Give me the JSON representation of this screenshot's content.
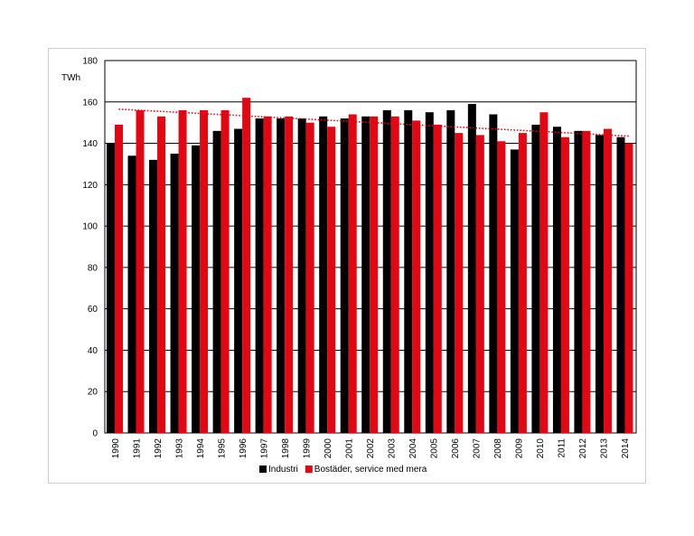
{
  "chart_data": {
    "type": "bar",
    "unit_label": "TWh",
    "categories": [
      "1990",
      "1991",
      "1992",
      "1993",
      "1994",
      "1995",
      "1996",
      "1997",
      "1998",
      "1999",
      "2000",
      "2001",
      "2002",
      "2003",
      "2004",
      "2005",
      "2006",
      "2007",
      "2008",
      "2009",
      "2010",
      "2011",
      "2012",
      "2013",
      "2014"
    ],
    "series": [
      {
        "name": "Industri",
        "color": "#000000",
        "values": [
          140,
          134,
          132,
          135,
          139,
          146,
          147,
          152,
          152,
          152,
          153,
          152,
          153,
          156,
          156,
          155,
          156,
          159,
          154,
          137,
          149,
          148,
          146,
          144,
          143
        ]
      },
      {
        "name": "Bostäder, service med mera",
        "color": "#e30613",
        "values": [
          149,
          156,
          153,
          156,
          156,
          156,
          162,
          153,
          153,
          150,
          148,
          154,
          153,
          153,
          151,
          149,
          145,
          144,
          141,
          145,
          155,
          143,
          146,
          147,
          140
        ]
      }
    ],
    "trendline": {
      "series": "Bostäder, service med mera",
      "color": "#e30613",
      "style": "dotted",
      "start": 156.5,
      "end": 143.5
    },
    "ylim": [
      0,
      180
    ],
    "yticks": [
      0,
      20,
      40,
      60,
      80,
      100,
      120,
      140,
      160,
      180
    ],
    "grid": true,
    "legend_position": "bottom"
  }
}
